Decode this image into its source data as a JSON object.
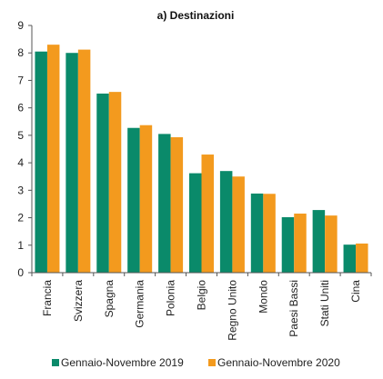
{
  "chart_data": {
    "type": "bar",
    "title": "a) Destinazioni",
    "xlabel": "",
    "ylabel": "",
    "ylim": [
      0,
      9
    ],
    "yticks": [
      0,
      1,
      2,
      3,
      4,
      5,
      6,
      7,
      8,
      9
    ],
    "grid": false,
    "legend_position": "bottom",
    "categories": [
      "Francia",
      "Svizzera",
      "Spagna",
      "Germania",
      "Polonia",
      "Belgio",
      "Regno Unito",
      "Mondo",
      "Paesi Bassi",
      "Stati Uniti",
      "Cina"
    ],
    "series": [
      {
        "name": "Gennaio-Novembre 2019",
        "color": "#0a8a6a",
        "values": [
          8.05,
          8.0,
          6.52,
          5.27,
          5.05,
          3.62,
          3.7,
          2.88,
          2.02,
          2.28,
          1.02
        ]
      },
      {
        "name": "Gennaio-Novembre 2020",
        "color": "#f39a1e",
        "values": [
          8.3,
          8.12,
          6.58,
          5.37,
          4.93,
          4.3,
          3.5,
          2.87,
          2.15,
          2.08,
          1.06
        ]
      }
    ]
  }
}
